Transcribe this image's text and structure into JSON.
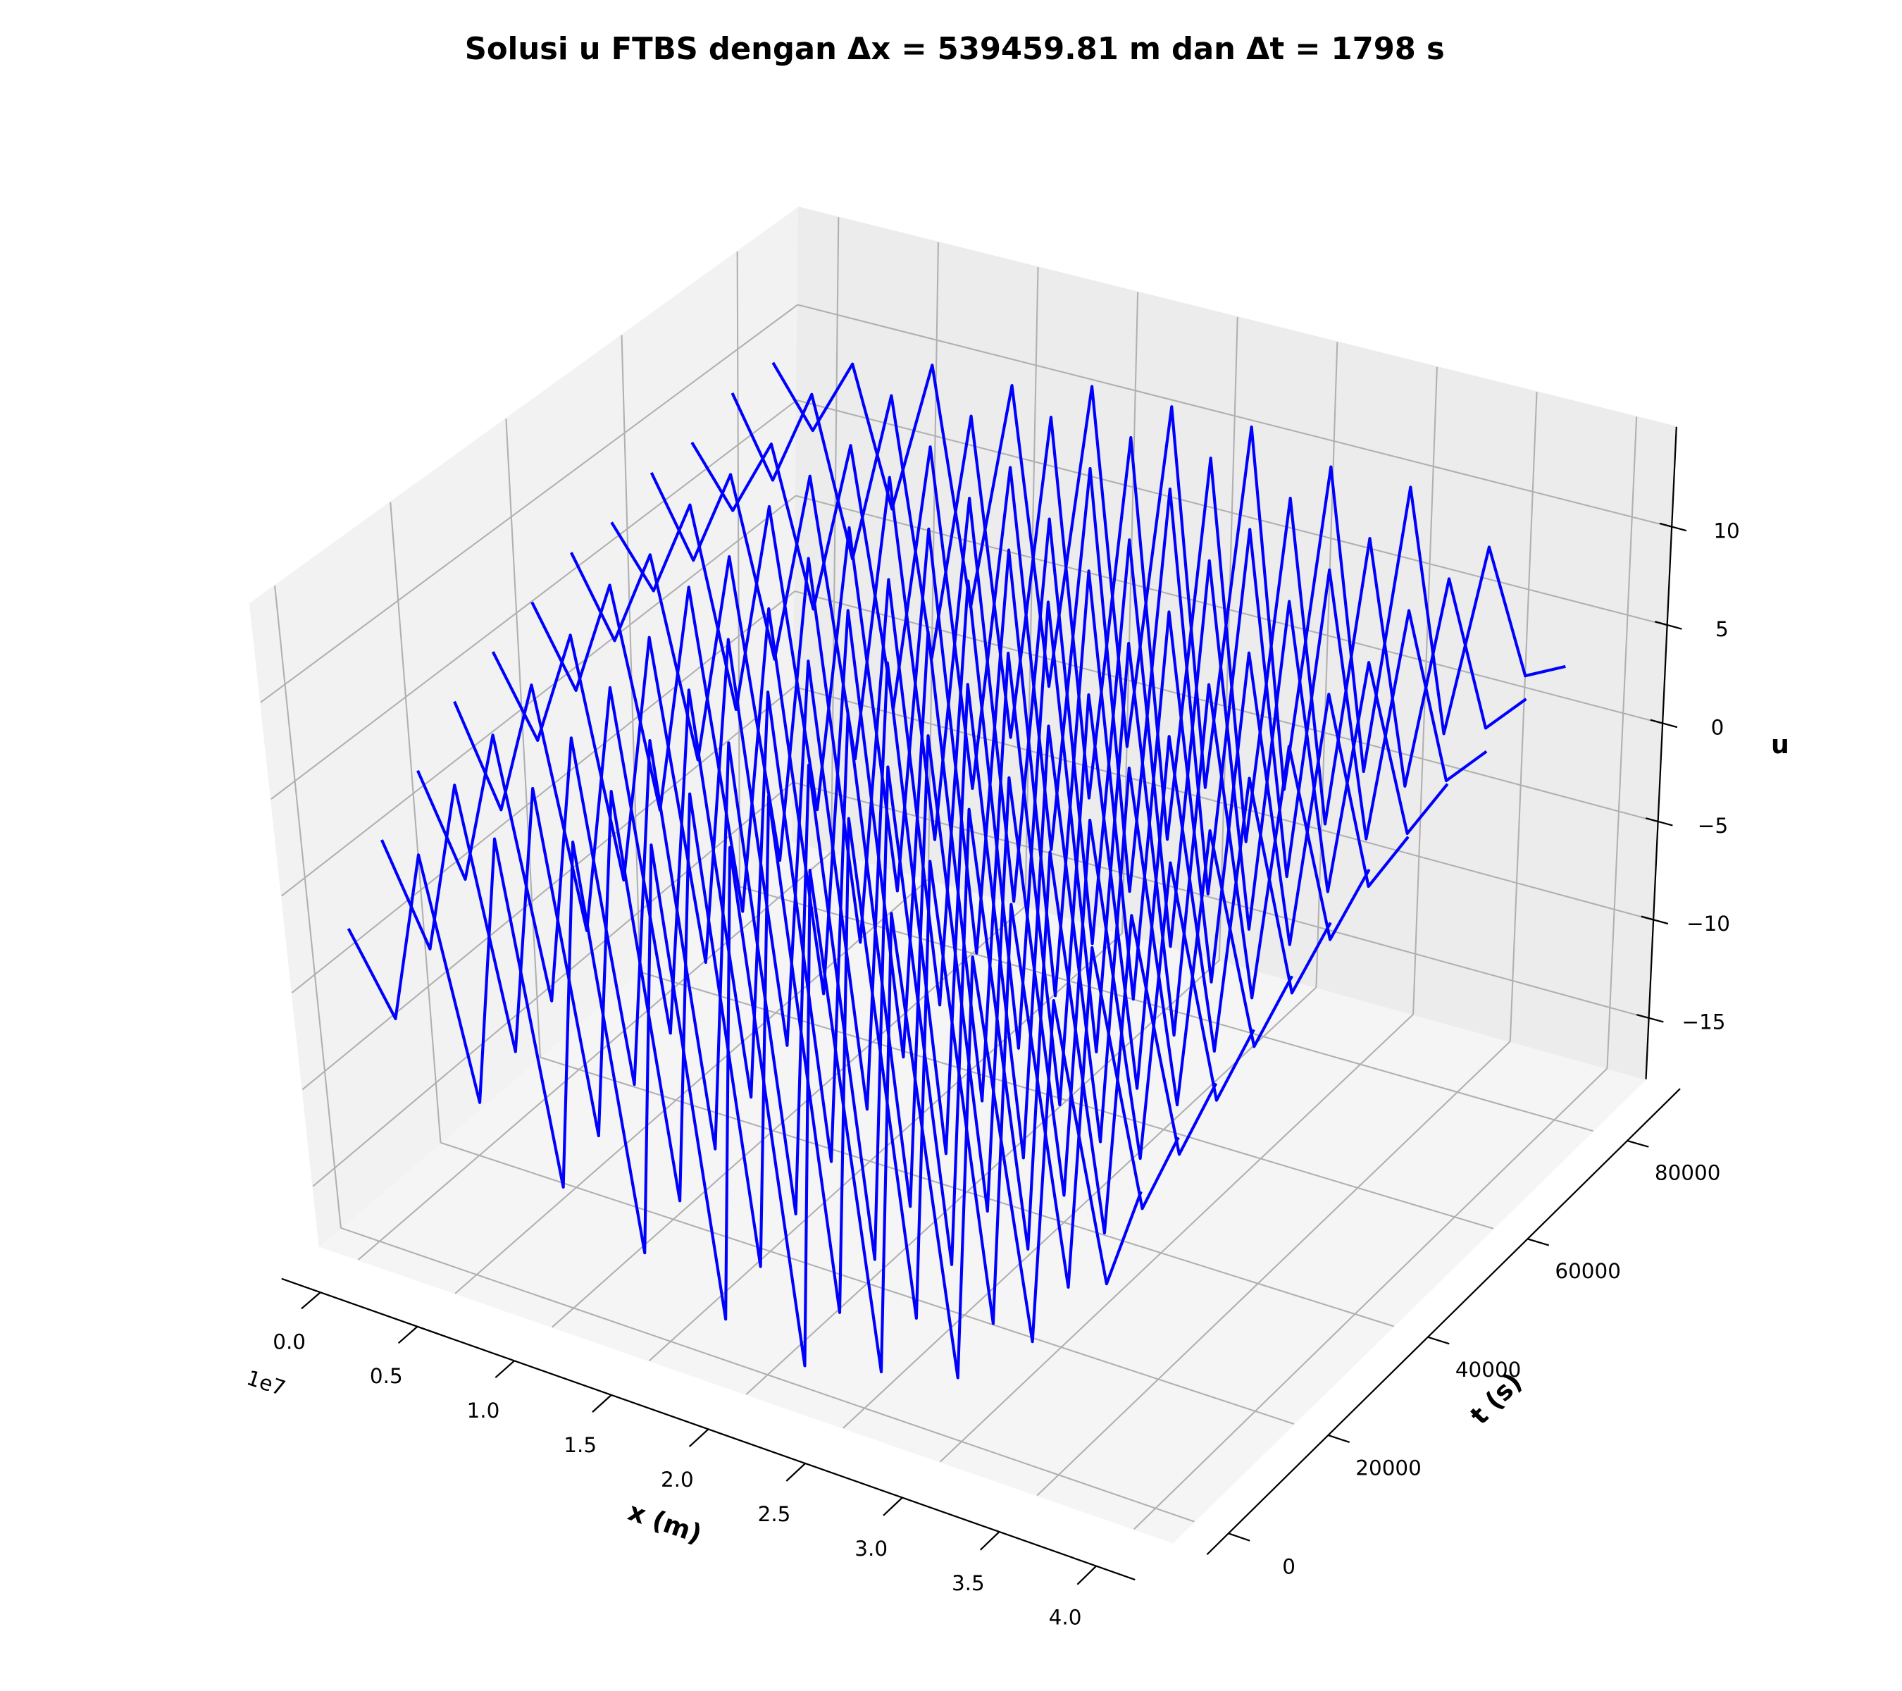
{
  "chart_data": {
    "type": "line3d",
    "title": "Solusi u FTBS dengan Δx = 539459.81 m dan Δt = 1798 s",
    "xlabel": "x (m)",
    "ylabel": "t (s)",
    "zlabel": "u",
    "x_offset_text": "1e7",
    "color": "#0000ff",
    "grid": true,
    "x": [
      0,
      2000000,
      4000000,
      6000000,
      8000000,
      10000000,
      12000000,
      14000000,
      16000000,
      18000000,
      20000000,
      22000000,
      24000000,
      26000000,
      28000000,
      30000000,
      32000000,
      34000000,
      36000000,
      38000000,
      40000000
    ],
    "series": [
      {
        "t": 0,
        "values": [
          -2,
          -6,
          3,
          -9,
          5,
          -12,
          6,
          -14,
          7,
          -16,
          8,
          -17,
          8,
          -16,
          7,
          -15,
          6,
          -12,
          5,
          -8,
          -3
        ]
      },
      {
        "t": 7200,
        "values": [
          1,
          -4,
          5,
          -8,
          6,
          -11,
          7,
          -13,
          8,
          -15,
          9,
          -16,
          9,
          -15,
          8,
          -14,
          7,
          -11,
          6,
          -6,
          -2
        ]
      },
      {
        "t": 14400,
        "values": [
          3,
          -2,
          6,
          -7,
          7,
          -10,
          8,
          -12,
          9,
          -14,
          9,
          -15,
          10,
          -14,
          9,
          -12,
          8,
          -10,
          6,
          -5,
          -1
        ]
      },
      {
        "t": 21600,
        "values": [
          5,
          0,
          7,
          -5,
          8,
          -9,
          9,
          -11,
          10,
          -13,
          10,
          -14,
          10,
          -13,
          9,
          -11,
          8,
          -8,
          7,
          -4,
          0
        ]
      },
      {
        "t": 28800,
        "values": [
          6,
          2,
          8,
          -4,
          9,
          -7,
          10,
          -10,
          10,
          -12,
          11,
          -13,
          11,
          -12,
          10,
          -10,
          9,
          -7,
          7,
          -3,
          1
        ]
      },
      {
        "t": 36000,
        "values": [
          7,
          3,
          9,
          -2,
          10,
          -6,
          10,
          -9,
          11,
          -11,
          11,
          -12,
          11,
          -11,
          10,
          -9,
          9,
          -6,
          8,
          -2,
          2
        ]
      },
      {
        "t": 43200,
        "values": [
          8,
          4,
          9,
          -1,
          10,
          -5,
          11,
          -8,
          11,
          -10,
          12,
          -11,
          12,
          -10,
          11,
          -8,
          10,
          -5,
          8,
          -1,
          3
        ]
      },
      {
        "t": 50400,
        "values": [
          8,
          5,
          10,
          0,
          11,
          -4,
          11,
          -7,
          12,
          -9,
          12,
          -10,
          12,
          -9,
          11,
          -7,
          10,
          -4,
          9,
          0,
          3
        ]
      },
      {
        "t": 57600,
        "values": [
          9,
          5,
          10,
          1,
          11,
          -3,
          12,
          -6,
          12,
          -8,
          12,
          -9,
          12,
          -8,
          12,
          -6,
          11,
          -3,
          9,
          1,
          4
        ]
      },
      {
        "t": 64800,
        "values": [
          9,
          6,
          10,
          2,
          11,
          -2,
          12,
          -5,
          12,
          -7,
          13,
          -8,
          13,
          -7,
          12,
          -5,
          11,
          -2,
          10,
          2,
          4
        ]
      },
      {
        "t": 72000,
        "values": [
          10,
          6,
          11,
          3,
          12,
          -1,
          12,
          -4,
          13,
          -6,
          13,
          -7,
          13,
          -6,
          12,
          -4,
          11,
          -1,
          10,
          3,
          5
        ]
      },
      {
        "t": 79200,
        "values": [
          10,
          7,
          11,
          4,
          12,
          0,
          12,
          -3,
          13,
          -5,
          13,
          -6,
          13,
          -5,
          12,
          -3,
          12,
          0,
          10,
          4,
          5
        ]
      }
    ],
    "xlim": [
      -2000000,
      42000000
    ],
    "ylim": [
      -4300,
      90600
    ],
    "zlim": [
      -18.1,
      15.1
    ],
    "xticks": [
      {
        "value": 0,
        "label": "0.0"
      },
      {
        "value": 5000000,
        "label": "0.5"
      },
      {
        "value": 10000000,
        "label": "1.0"
      },
      {
        "value": 15000000,
        "label": "1.5"
      },
      {
        "value": 20000000,
        "label": "2.0"
      },
      {
        "value": 25000000,
        "label": "2.5"
      },
      {
        "value": 30000000,
        "label": "3.0"
      },
      {
        "value": 35000000,
        "label": "3.5"
      },
      {
        "value": 40000000,
        "label": "4.0"
      }
    ],
    "yticks": [
      0,
      20000,
      40000,
      60000,
      80000
    ],
    "zticks": [
      {
        "value": -15,
        "label": "−15"
      },
      {
        "value": -10,
        "label": "−10"
      },
      {
        "value": -5,
        "label": "−5"
      },
      0,
      5,
      10
    ]
  }
}
